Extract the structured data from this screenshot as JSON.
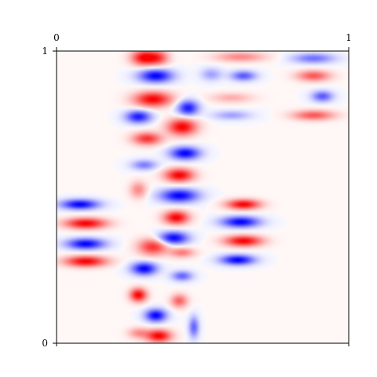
{
  "chart_data": {
    "type": "heatmap",
    "title": "",
    "xlabel": "",
    "ylabel": "",
    "xlim": [
      0,
      1
    ],
    "ylim": [
      0,
      1
    ],
    "x_tick_labels": [
      "0",
      "1"
    ],
    "y_tick_labels": [
      "0",
      "1"
    ],
    "x_axis_position": "top",
    "grid": false,
    "colormap": "bwr",
    "colors": {
      "negative": "#0000ff",
      "zero": "#f8f8ff",
      "positive": "#ff0000",
      "axis": "#000000"
    },
    "value_range": [
      -1,
      1
    ],
    "description_note": "",
    "blobs": [
      {
        "x": 0.3,
        "y": 0.977,
        "sx": 0.03,
        "sy": 0.018,
        "v": 1.0
      },
      {
        "x": 0.35,
        "y": 0.977,
        "sx": 0.025,
        "sy": 0.018,
        "v": 0.6
      },
      {
        "x": 0.34,
        "y": 0.915,
        "sx": 0.04,
        "sy": 0.016,
        "v": -1.0
      },
      {
        "x": 0.33,
        "y": 0.835,
        "sx": 0.045,
        "sy": 0.018,
        "v": 1.0
      },
      {
        "x": 0.28,
        "y": 0.775,
        "sx": 0.03,
        "sy": 0.015,
        "v": -0.9
      },
      {
        "x": 0.45,
        "y": 0.805,
        "sx": 0.025,
        "sy": 0.018,
        "v": -0.9
      },
      {
        "x": 0.43,
        "y": 0.74,
        "sx": 0.035,
        "sy": 0.02,
        "v": 1.0
      },
      {
        "x": 0.31,
        "y": 0.7,
        "sx": 0.035,
        "sy": 0.015,
        "v": 0.8
      },
      {
        "x": 0.44,
        "y": 0.65,
        "sx": 0.035,
        "sy": 0.015,
        "v": -1.0
      },
      {
        "x": 0.3,
        "y": 0.61,
        "sx": 0.03,
        "sy": 0.012,
        "v": -0.5
      },
      {
        "x": 0.42,
        "y": 0.575,
        "sx": 0.035,
        "sy": 0.016,
        "v": 1.0
      },
      {
        "x": 0.28,
        "y": 0.525,
        "sx": 0.02,
        "sy": 0.02,
        "v": 0.45
      },
      {
        "x": 0.42,
        "y": 0.505,
        "sx": 0.045,
        "sy": 0.016,
        "v": -1.0
      },
      {
        "x": 0.41,
        "y": 0.43,
        "sx": 0.03,
        "sy": 0.016,
        "v": 1.0
      },
      {
        "x": 0.4,
        "y": 0.36,
        "sx": 0.035,
        "sy": 0.015,
        "v": -1.0
      },
      {
        "x": 0.33,
        "y": 0.33,
        "sx": 0.035,
        "sy": 0.02,
        "v": 0.8
      },
      {
        "x": 0.43,
        "y": 0.31,
        "sx": 0.03,
        "sy": 0.012,
        "v": 0.5
      },
      {
        "x": 0.3,
        "y": 0.255,
        "sx": 0.03,
        "sy": 0.015,
        "v": -1.0
      },
      {
        "x": 0.43,
        "y": 0.23,
        "sx": 0.025,
        "sy": 0.012,
        "v": -0.6
      },
      {
        "x": 0.28,
        "y": 0.165,
        "sx": 0.02,
        "sy": 0.016,
        "v": 1.0
      },
      {
        "x": 0.42,
        "y": 0.145,
        "sx": 0.02,
        "sy": 0.016,
        "v": 0.6
      },
      {
        "x": 0.34,
        "y": 0.095,
        "sx": 0.025,
        "sy": 0.015,
        "v": -1.0
      },
      {
        "x": 0.28,
        "y": 0.035,
        "sx": 0.025,
        "sy": 0.013,
        "v": 0.4
      },
      {
        "x": 0.35,
        "y": 0.025,
        "sx": 0.03,
        "sy": 0.015,
        "v": 1.0
      },
      {
        "x": 0.47,
        "y": 0.055,
        "sx": 0.012,
        "sy": 0.025,
        "v": -0.6
      },
      {
        "x": 0.08,
        "y": 0.475,
        "sx": 0.045,
        "sy": 0.012,
        "v": -1.0
      },
      {
        "x": 0.1,
        "y": 0.41,
        "sx": 0.05,
        "sy": 0.013,
        "v": 1.0
      },
      {
        "x": 0.1,
        "y": 0.34,
        "sx": 0.045,
        "sy": 0.013,
        "v": -1.0
      },
      {
        "x": 0.1,
        "y": 0.28,
        "sx": 0.05,
        "sy": 0.013,
        "v": 1.0
      },
      {
        "x": 0.64,
        "y": 0.475,
        "sx": 0.04,
        "sy": 0.012,
        "v": 1.0
      },
      {
        "x": 0.63,
        "y": 0.415,
        "sx": 0.045,
        "sy": 0.013,
        "v": -1.0
      },
      {
        "x": 0.64,
        "y": 0.35,
        "sx": 0.045,
        "sy": 0.013,
        "v": 1.0
      },
      {
        "x": 0.62,
        "y": 0.285,
        "sx": 0.04,
        "sy": 0.012,
        "v": -1.0
      },
      {
        "x": 0.63,
        "y": 0.98,
        "sx": 0.06,
        "sy": 0.012,
        "v": 0.45
      },
      {
        "x": 0.53,
        "y": 0.92,
        "sx": 0.025,
        "sy": 0.015,
        "v": -0.35
      },
      {
        "x": 0.64,
        "y": 0.915,
        "sx": 0.03,
        "sy": 0.012,
        "v": -0.65
      },
      {
        "x": 0.6,
        "y": 0.84,
        "sx": 0.05,
        "sy": 0.012,
        "v": 0.3
      },
      {
        "x": 0.6,
        "y": 0.78,
        "sx": 0.045,
        "sy": 0.011,
        "v": -0.35
      },
      {
        "x": 0.88,
        "y": 0.975,
        "sx": 0.05,
        "sy": 0.012,
        "v": -0.55
      },
      {
        "x": 0.88,
        "y": 0.915,
        "sx": 0.04,
        "sy": 0.013,
        "v": 0.65
      },
      {
        "x": 0.91,
        "y": 0.845,
        "sx": 0.025,
        "sy": 0.013,
        "v": -0.65
      },
      {
        "x": 0.88,
        "y": 0.78,
        "sx": 0.05,
        "sy": 0.012,
        "v": 0.65
      }
    ]
  }
}
